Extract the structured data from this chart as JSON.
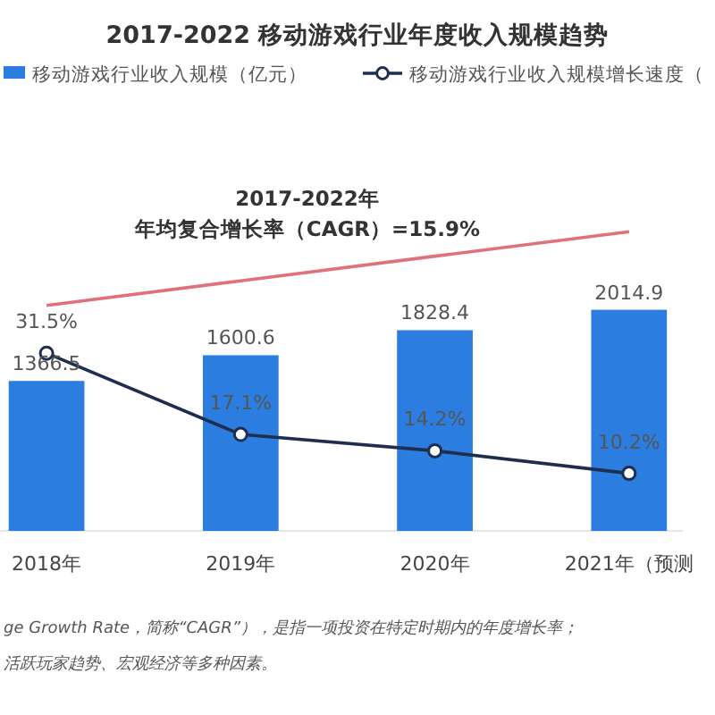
{
  "chart_data": {
    "type": "bar",
    "title": "2017-2022  移动游戏行业年度收入规模趋势",
    "categories": [
      "2018年",
      "2019年",
      "2020年",
      "2021年（预测"
    ],
    "series": [
      {
        "name": "移动游戏行业收入规模（亿元）",
        "color": "#2b7de0",
        "values": [
          1366.5,
          1600.6,
          1828.4,
          2014.9
        ],
        "data_labels": true
      },
      {
        "name": "移动游戏行业收入规模增长速度（",
        "type": "line",
        "axis": "y2",
        "color": "#1f2d4f",
        "marker": "circle",
        "values": [
          31.5,
          17.1,
          14.2,
          10.2
        ],
        "value_labels": [
          "31.5%",
          "17.1%",
          "14.2%",
          "10.2%"
        ]
      },
      {
        "type": "line",
        "color": "#e0707a",
        "marker": "none",
        "values": [
          2055,
          2279,
          2503,
          2726
        ]
      }
    ],
    "legend": "top",
    "annotations": [
      "2017-2022年",
      "年均复合增长率（CAGR）=15.9%",
      "ge Growth Rate，简称“CAGR”），是指一项投资在特定时期内的年度增长率；",
      "活跃玩家趋势、宏观经济等多种因素。"
    ]
  }
}
